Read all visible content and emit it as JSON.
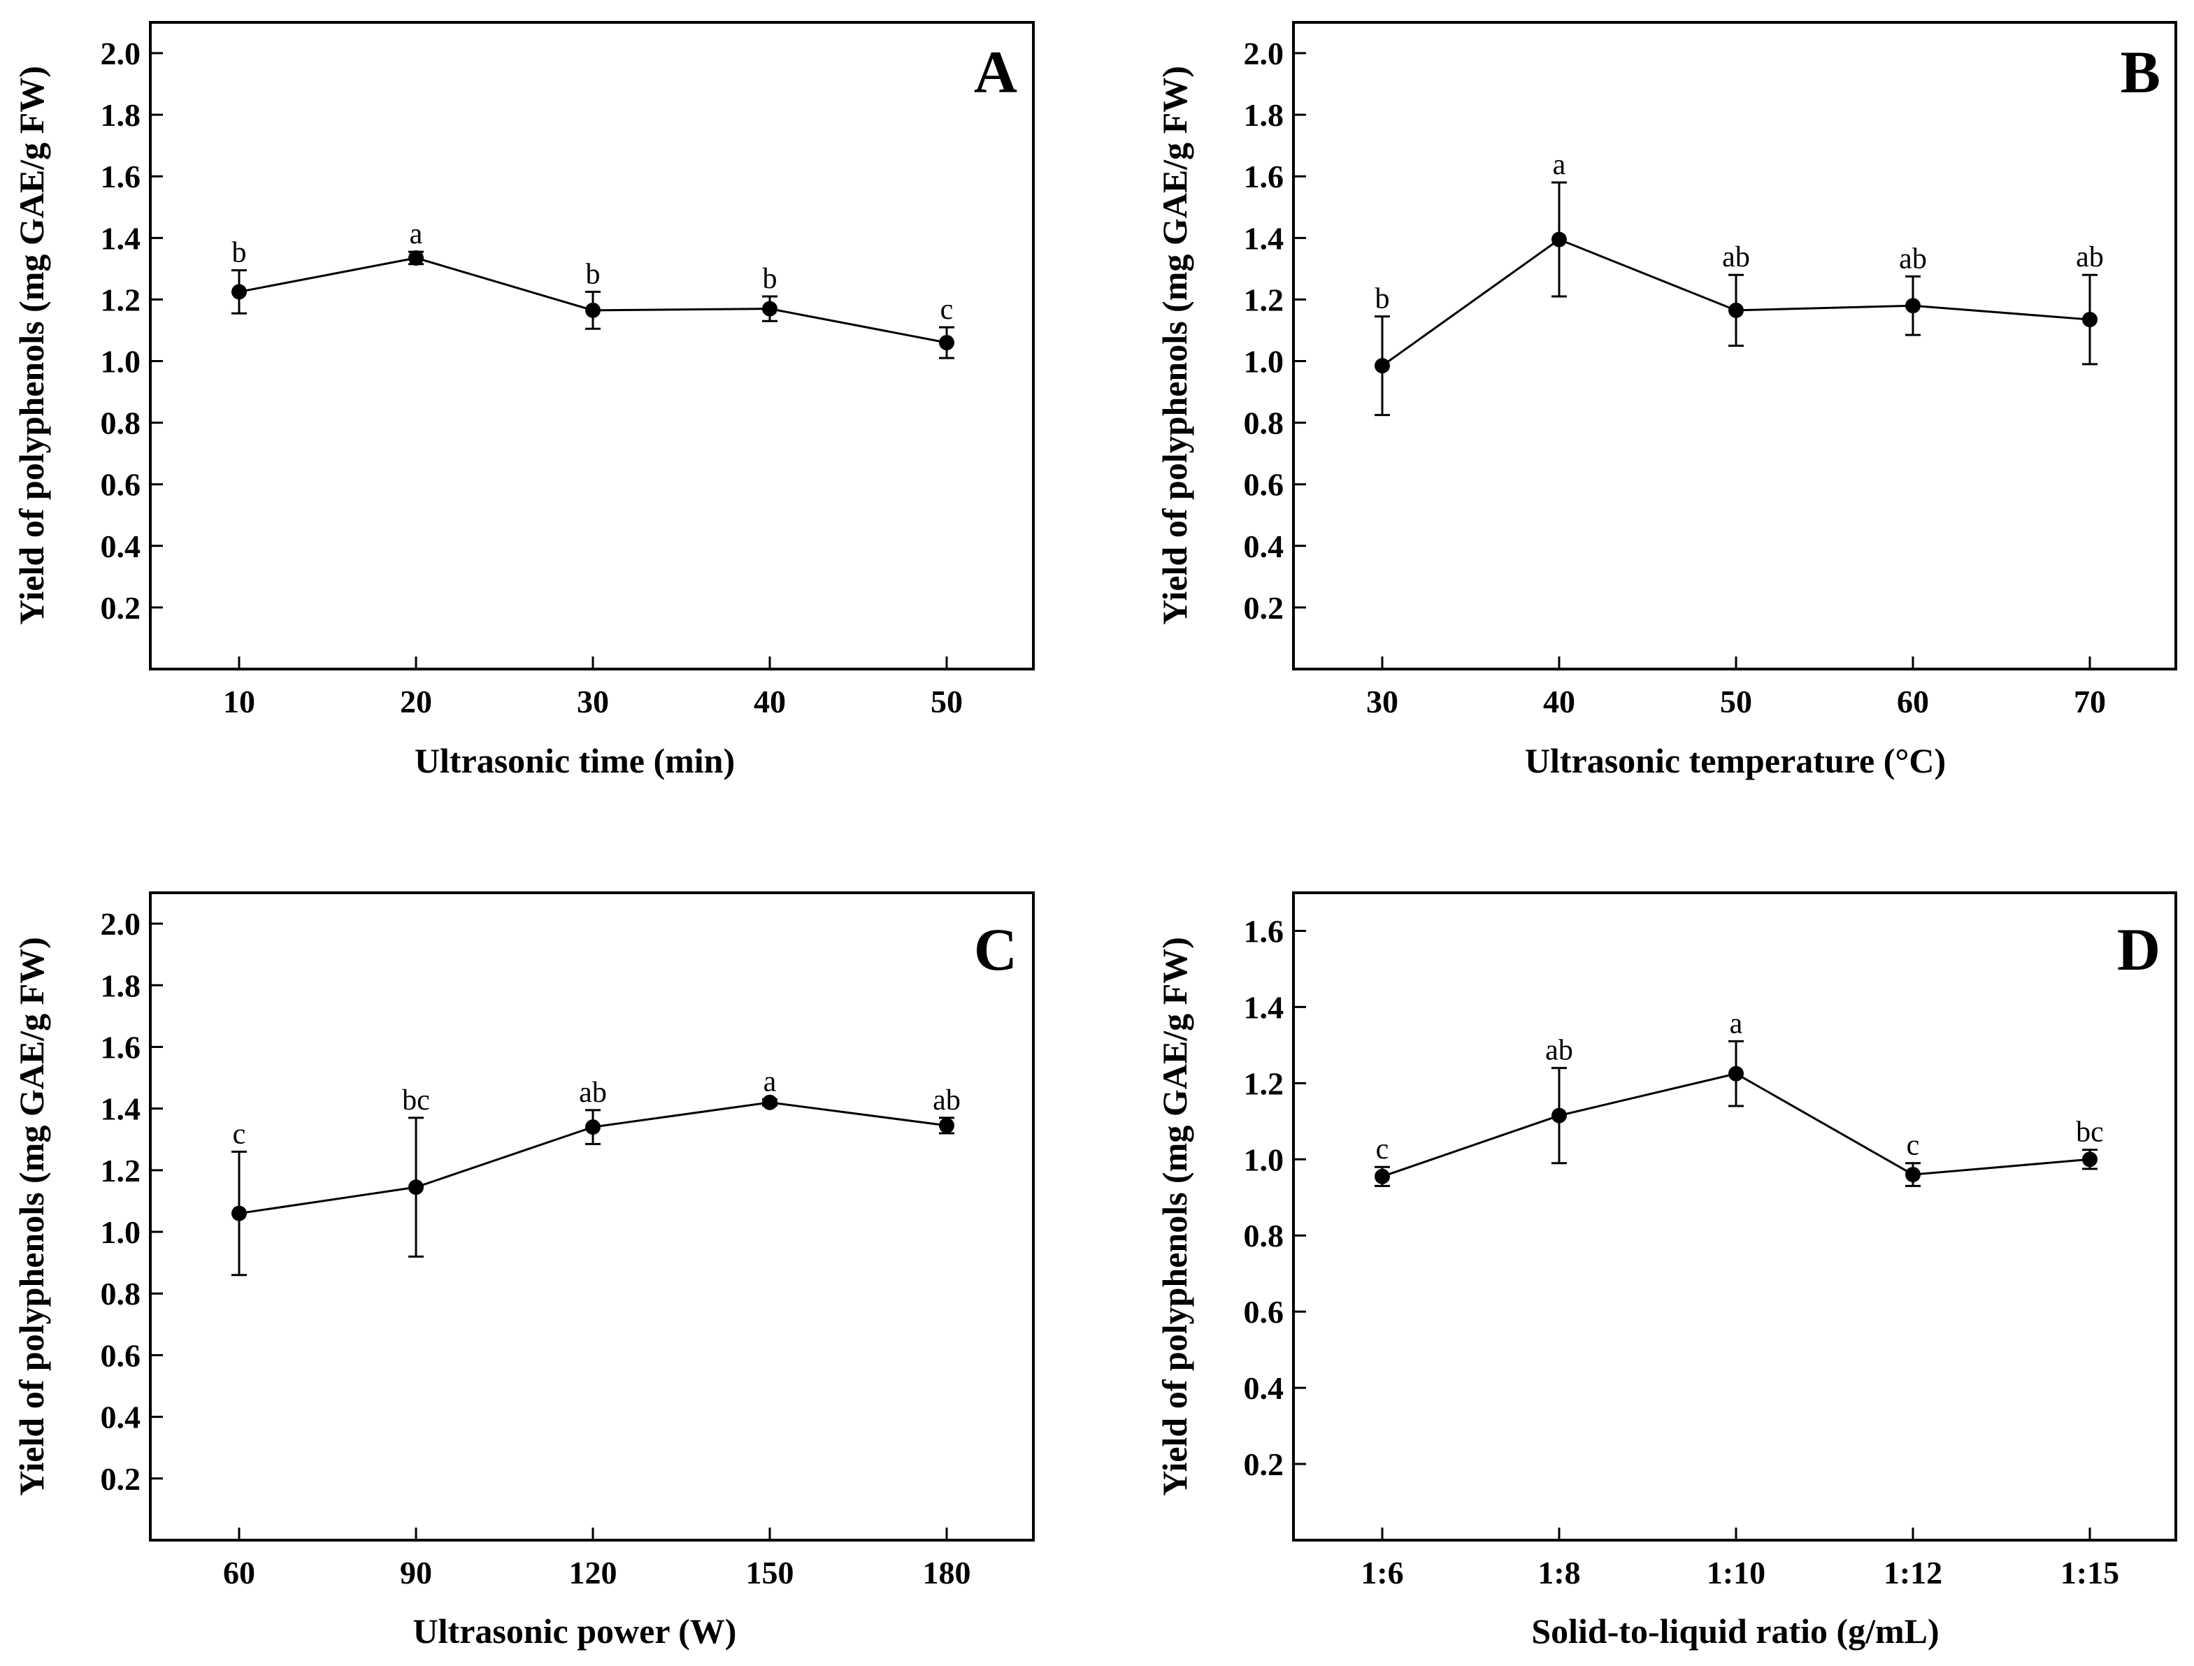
{
  "chart_data": [
    {
      "type": "line",
      "panel_label": "A",
      "xlabel": "Ultrasonic time (min)",
      "ylabel": "Yield of polyphenols (mg GAE/g FW)",
      "categories": [
        "10",
        "20",
        "30",
        "40",
        "50"
      ],
      "values": [
        1.225,
        1.335,
        1.165,
        1.17,
        1.06
      ],
      "errors": [
        0.07,
        0.02,
        0.06,
        0.04,
        0.05
      ],
      "significance": [
        "b",
        "a",
        "b",
        "b",
        "c"
      ],
      "ylim": [
        0,
        2.1
      ],
      "yticks": [
        0.2,
        0.4,
        0.6,
        0.8,
        1.0,
        1.2,
        1.4,
        1.6,
        1.8,
        2.0
      ],
      "ytick_labels": [
        "0.2",
        "0.4",
        "0.6",
        "0.8",
        "1.0",
        "1.2",
        "1.4",
        "1.6",
        "1.8",
        "2.0"
      ],
      "grid": false
    },
    {
      "type": "line",
      "panel_label": "B",
      "xlabel": "Ultrasonic temperature (°C)",
      "ylabel": "Yield of polyphenols (mg GAE/g FW)",
      "categories": [
        "30",
        "40",
        "50",
        "60",
        "70"
      ],
      "values": [
        0.985,
        1.395,
        1.165,
        1.18,
        1.135
      ],
      "errors": [
        0.16,
        0.185,
        0.115,
        0.095,
        0.145
      ],
      "significance": [
        "b",
        "a",
        "ab",
        "ab",
        "ab"
      ],
      "ylim": [
        0,
        2.1
      ],
      "yticks": [
        0.2,
        0.4,
        0.6,
        0.8,
        1.0,
        1.2,
        1.4,
        1.6,
        1.8,
        2.0
      ],
      "ytick_labels": [
        "0.2",
        "0.4",
        "0.6",
        "0.8",
        "1.0",
        "1.2",
        "1.4",
        "1.6",
        "1.8",
        "2.0"
      ],
      "grid": false
    },
    {
      "type": "line",
      "panel_label": "C",
      "xlabel": "Ultrasonic power (W)",
      "ylabel": "Yield of polyphenols (mg GAE/g FW)",
      "categories": [
        "60",
        "90",
        "120",
        "150",
        "180"
      ],
      "values": [
        1.06,
        1.145,
        1.34,
        1.42,
        1.345
      ],
      "errors": [
        0.2,
        0.225,
        0.055,
        0.01,
        0.025
      ],
      "significance": [
        "c",
        "bc",
        "ab",
        "a",
        "ab"
      ],
      "ylim": [
        0,
        2.1
      ],
      "yticks": [
        0.2,
        0.4,
        0.6,
        0.8,
        1.0,
        1.2,
        1.4,
        1.6,
        1.8,
        2.0
      ],
      "ytick_labels": [
        "0.2",
        "0.4",
        "0.6",
        "0.8",
        "1.0",
        "1.2",
        "1.4",
        "1.6",
        "1.8",
        "2.0"
      ],
      "grid": false
    },
    {
      "type": "line",
      "panel_label": "D",
      "xlabel": "Solid-to-liquid ratio (g/mL)",
      "ylabel": "Yield of polyphenols (mg GAE/g FW)",
      "categories": [
        "1:6",
        "1:8",
        "1:10",
        "1:12",
        "1:15"
      ],
      "values": [
        0.955,
        1.115,
        1.225,
        0.96,
        1.0
      ],
      "errors": [
        0.025,
        0.125,
        0.085,
        0.03,
        0.025
      ],
      "significance": [
        "c",
        "ab",
        "a",
        "c",
        "bc"
      ],
      "ylim": [
        0,
        1.7
      ],
      "yticks": [
        0.2,
        0.4,
        0.6,
        0.8,
        1.0,
        1.2,
        1.4,
        1.6
      ],
      "ytick_labels": [
        "0.2",
        "0.4",
        "0.6",
        "0.8",
        "1.0",
        "1.2",
        "1.4",
        "1.6"
      ],
      "grid": false
    }
  ]
}
